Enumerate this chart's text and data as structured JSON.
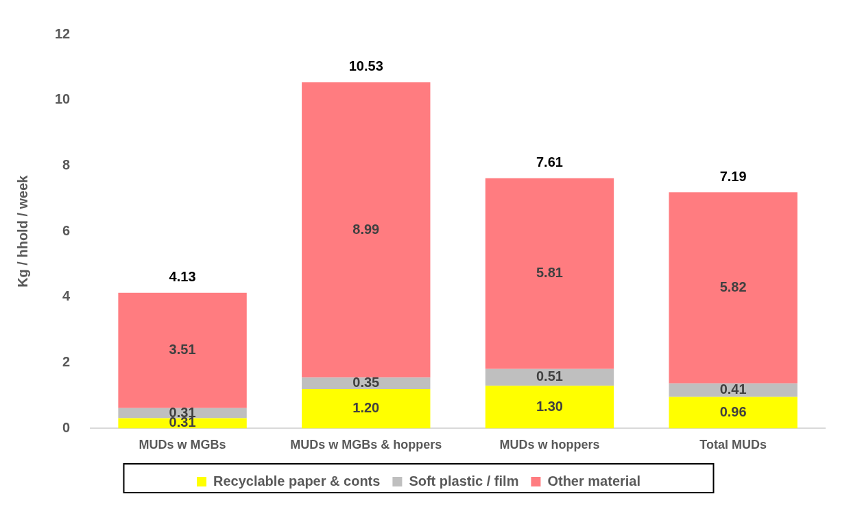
{
  "chart_data": {
    "type": "bar",
    "stacked": true,
    "ylabel": "Kg / hhold / week",
    "categories": [
      "MUDs w MGBs",
      "MUDs w MGBs & hoppers",
      "MUDs w hoppers",
      "Total MUDs"
    ],
    "series": [
      {
        "name": "Recyclable paper & conts",
        "color": "#ffff00",
        "values": [
          0.31,
          1.2,
          1.3,
          0.96
        ],
        "value_labels": [
          "0.31",
          "1.20",
          "1.30",
          "0.96"
        ]
      },
      {
        "name": "Soft plastic / film",
        "color": "#bfbfbf",
        "values": [
          0.31,
          0.35,
          0.51,
          0.41
        ],
        "value_labels": [
          "0.31",
          "0.35",
          "0.51",
          "0.41"
        ]
      },
      {
        "name": "Other material",
        "color": "#ff7c80",
        "values": [
          3.51,
          8.99,
          5.81,
          5.82
        ],
        "value_labels": [
          "3.51",
          "8.99",
          "5.81",
          "5.82"
        ]
      }
    ],
    "totals": [
      "4.13",
      "10.53",
      "7.61",
      "7.19"
    ],
    "ylim": [
      0,
      12
    ],
    "yticks": [
      0,
      2,
      4,
      6,
      8,
      10,
      12
    ],
    "grid": false,
    "legend": "bottom"
  }
}
